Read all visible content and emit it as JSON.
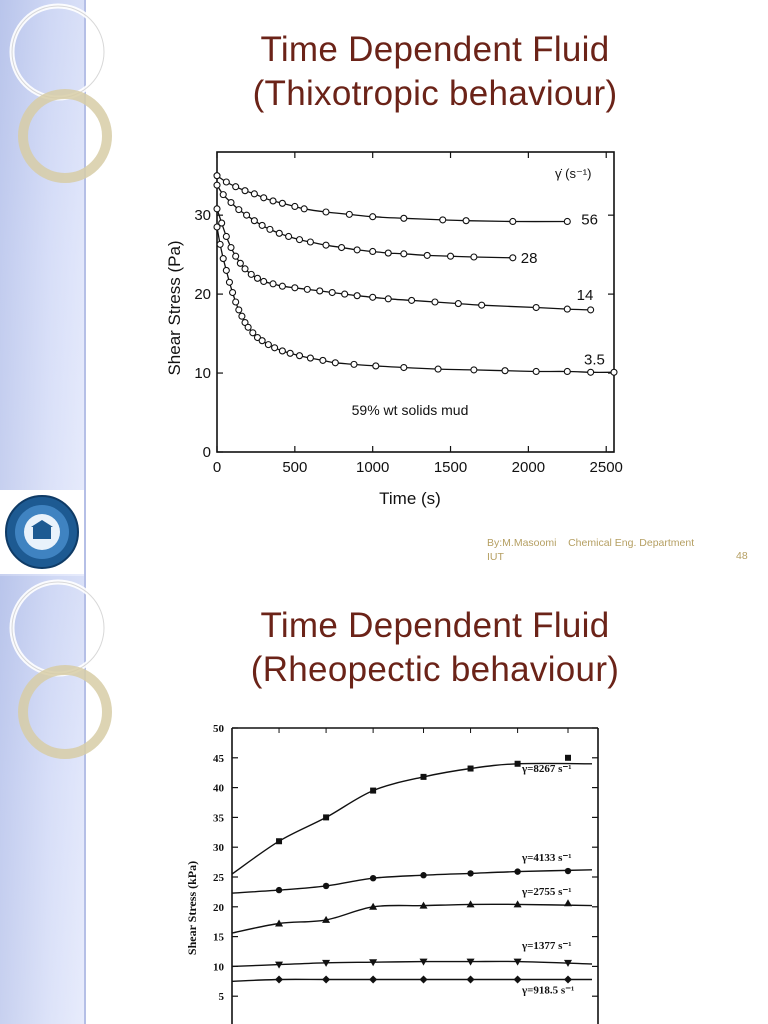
{
  "slide1": {
    "title_line1": "Time Dependent Fluid",
    "title_line2": "(Thixotropic behaviour)",
    "footer_line1": "By:M.Masoomi    Chemical Eng. Department",
    "footer_line2": "IUT",
    "page_number": "48"
  },
  "slide2": {
    "title_line1": "Time Dependent Fluid",
    "title_line2": "(Rheopectic behaviour)"
  },
  "colors": {
    "title": "#6b2318",
    "footer": "#b59f62",
    "sidebar": "#c9d3f2",
    "ink": "#111111"
  },
  "chart_data": [
    {
      "type": "line",
      "title": "",
      "xlabel": "Time (s)",
      "ylabel": "Shear Stress (Pa)",
      "xlim": [
        0,
        2550
      ],
      "ylim": [
        0,
        38
      ],
      "xticks": [
        0,
        500,
        1000,
        1500,
        2000,
        2500
      ],
      "yticks": [
        0,
        10,
        20,
        30
      ],
      "legend_title": "γ̇ (s⁻¹)",
      "annotation": "59% wt solids mud",
      "series": [
        {
          "name": "56",
          "x": [
            0,
            60,
            120,
            180,
            240,
            300,
            360,
            420,
            500,
            560,
            700,
            850,
            1000,
            1200,
            1450,
            1600,
            1900,
            2250
          ],
          "y": [
            35,
            34.2,
            33.6,
            33.1,
            32.7,
            32.2,
            31.8,
            31.5,
            31.1,
            30.8,
            30.4,
            30.1,
            29.8,
            29.6,
            29.4,
            29.3,
            29.2,
            29.2
          ]
        },
        {
          "name": "28",
          "x": [
            0,
            40,
            90,
            140,
            190,
            240,
            290,
            340,
            400,
            460,
            530,
            600,
            700,
            800,
            900,
            1000,
            1100,
            1200,
            1350,
            1500,
            1650,
            1900
          ],
          "y": [
            33.8,
            32.6,
            31.6,
            30.7,
            30,
            29.3,
            28.7,
            28.2,
            27.7,
            27.3,
            26.9,
            26.6,
            26.2,
            25.9,
            25.6,
            25.4,
            25.2,
            25.1,
            24.9,
            24.8,
            24.7,
            24.6
          ]
        },
        {
          "name": "14",
          "x": [
            0,
            30,
            60,
            90,
            120,
            150,
            180,
            220,
            260,
            300,
            360,
            420,
            500,
            580,
            660,
            740,
            820,
            900,
            1000,
            1100,
            1250,
            1400,
            1550,
            1700,
            2050,
            2250,
            2400
          ],
          "y": [
            30.8,
            29,
            27.3,
            25.9,
            24.8,
            23.9,
            23.2,
            22.5,
            22,
            21.6,
            21.3,
            21,
            20.8,
            20.6,
            20.4,
            20.2,
            20,
            19.8,
            19.6,
            19.4,
            19.2,
            19,
            18.8,
            18.6,
            18.3,
            18.1,
            18
          ]
        },
        {
          "name": "3.5",
          "x": [
            0,
            20,
            40,
            60,
            80,
            100,
            120,
            140,
            160,
            180,
            200,
            230,
            260,
            290,
            330,
            370,
            420,
            470,
            530,
            600,
            680,
            760,
            880,
            1020,
            1200,
            1420,
            1650,
            1850,
            2050,
            2250,
            2400,
            2550
          ],
          "y": [
            28.5,
            26.3,
            24.5,
            23,
            21.5,
            20.2,
            19,
            18,
            17.2,
            16.4,
            15.8,
            15.1,
            14.5,
            14.1,
            13.6,
            13.2,
            12.8,
            12.5,
            12.2,
            11.9,
            11.6,
            11.3,
            11.1,
            10.9,
            10.7,
            10.5,
            10.4,
            10.3,
            10.2,
            10.2,
            10.1,
            10.1
          ]
        }
      ]
    },
    {
      "type": "scatter",
      "title": "",
      "xlabel": "",
      "ylabel": "Shear Stress (kPa)",
      "ylim": [
        0,
        50
      ],
      "yticks": [
        5,
        10,
        15,
        20,
        25,
        30,
        35,
        40,
        45,
        50
      ],
      "xrange": [
        0,
        1
      ],
      "series": [
        {
          "name": "γ=8267 s⁻¹",
          "marker": "square",
          "x": [
            0.14,
            0.28,
            0.42,
            0.57,
            0.71,
            0.85,
            1.0
          ],
          "y": [
            31,
            35,
            39.5,
            41.8,
            43.2,
            44,
            45
          ]
        },
        {
          "name": "γ=4133 s⁻¹",
          "marker": "circle",
          "x": [
            0.14,
            0.28,
            0.42,
            0.57,
            0.71,
            0.85,
            1.0
          ],
          "y": [
            22.8,
            23.5,
            24.8,
            25.3,
            25.6,
            25.9,
            26
          ]
        },
        {
          "name": "γ=2755 s⁻¹",
          "marker": "triangle",
          "x": [
            0.14,
            0.28,
            0.42,
            0.57,
            0.71,
            0.85,
            1.0
          ],
          "y": [
            17.2,
            17.8,
            20,
            20.2,
            20.4,
            20.4,
            20.6
          ]
        },
        {
          "name": "γ=1377 s⁻¹",
          "marker": "triangle-down",
          "x": [
            0.14,
            0.28,
            0.42,
            0.57,
            0.71,
            0.85,
            1.0
          ],
          "y": [
            10.3,
            10.6,
            10.7,
            10.8,
            10.8,
            10.8,
            10.6
          ]
        },
        {
          "name": "γ=918.5 s⁻¹",
          "marker": "diamond",
          "x": [
            0.14,
            0.28,
            0.42,
            0.57,
            0.71,
            0.85,
            1.0
          ],
          "y": [
            7.8,
            7.8,
            7.8,
            7.8,
            7.8,
            7.8,
            7.8
          ]
        }
      ]
    }
  ]
}
